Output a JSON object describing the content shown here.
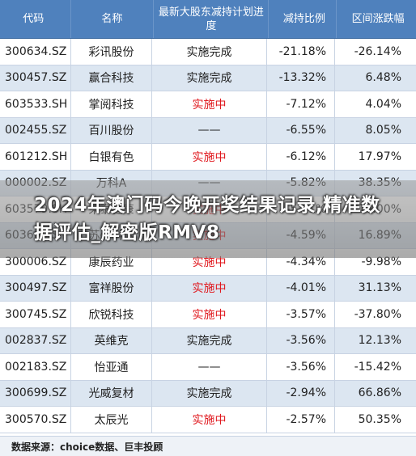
{
  "table": {
    "headers": {
      "code": "代码",
      "name": "名称",
      "progress": "最新大股东减持计划进度",
      "ratio": "减持比例",
      "change": "区间涨跌幅"
    },
    "rows": [
      {
        "code": "300634.SZ",
        "name": "彩讯股份",
        "progress": "实施完成",
        "ratio": "-21.18%",
        "change": "-26.14%"
      },
      {
        "code": "300457.SZ",
        "name": "赢合科技",
        "progress": "实施完成",
        "ratio": "-13.32%",
        "change": "6.48%"
      },
      {
        "code": "603533.SH",
        "name": "掌阅科技",
        "progress": "实施中",
        "ratio": "-7.12%",
        "change": "4.04%"
      },
      {
        "code": "002455.SZ",
        "name": "百川股份",
        "progress": "——",
        "ratio": "-6.55%",
        "change": "8.05%"
      },
      {
        "code": "601212.SH",
        "name": "白银有色",
        "progress": "实施中",
        "ratio": "-6.12%",
        "change": "17.97%"
      },
      {
        "code": "000002.SZ",
        "name": "万科A",
        "progress": "——",
        "ratio": "-5.82%",
        "change": "38.35%"
      },
      {
        "code": "603579.SH",
        "name": "荣泰健康",
        "progress": "实施中",
        "ratio": "-5.01%",
        "change": "16.00%"
      },
      {
        "code": "603660.SH",
        "name": "苏州科达",
        "progress": "实施中",
        "ratio": "-4.59%",
        "change": "16.89%"
      },
      {
        "code": "300006.SZ",
        "name": "康辰药业",
        "progress": "实施中",
        "ratio": "-4.34%",
        "change": "-9.98%"
      },
      {
        "code": "300497.SZ",
        "name": "富祥股份",
        "progress": "实施中",
        "ratio": "-4.01%",
        "change": "31.13%"
      },
      {
        "code": "300745.SZ",
        "name": "欣锐科技",
        "progress": "实施中",
        "ratio": "-3.57%",
        "change": "-37.80%"
      },
      {
        "code": "002837.SZ",
        "name": "英维克",
        "progress": "实施完成",
        "ratio": "-3.56%",
        "change": "12.13%"
      },
      {
        "code": "002183.SZ",
        "name": "怡亚通",
        "progress": "——",
        "ratio": "-3.56%",
        "change": "-15.42%"
      },
      {
        "code": "300699.SZ",
        "name": "光威复材",
        "progress": "实施完成",
        "ratio": "-2.94%",
        "change": "66.86%"
      },
      {
        "code": "300570.SZ",
        "name": "太辰光",
        "progress": "实施中",
        "ratio": "-2.57%",
        "change": "50.35%"
      }
    ]
  },
  "source": "数据来源：choice数据、巨丰投顾",
  "overlay": {
    "title": "2024年澳门码今晚开奖结果记录,精准数据评估_解密版RMV8"
  },
  "colors": {
    "header_bg": "#4f81bd",
    "stripe": "#dce6f1",
    "in_progress_red": "#e0181e"
  }
}
